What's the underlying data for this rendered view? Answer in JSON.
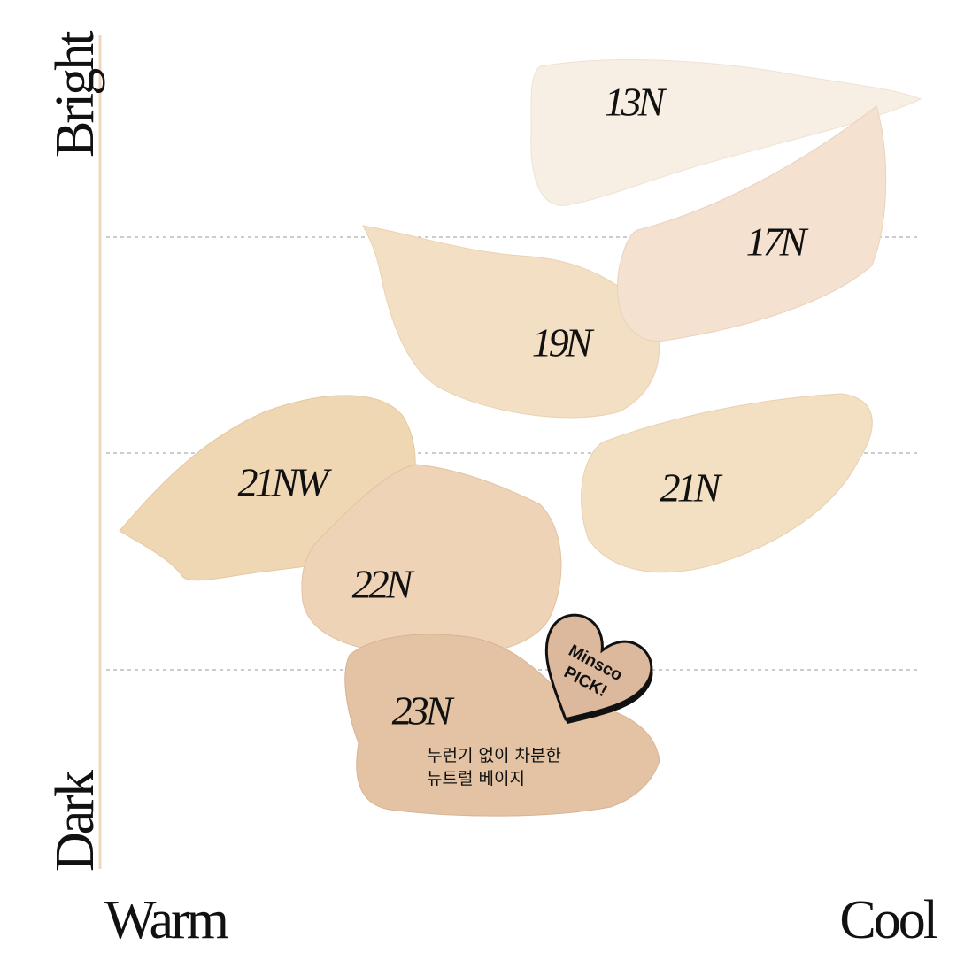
{
  "axes": {
    "y_top": "Bright",
    "y_bottom": "Dark",
    "x_left": "Warm",
    "x_right": "Cool"
  },
  "swatches": [
    {
      "label": "13N"
    },
    {
      "label": "17N"
    },
    {
      "label": "19N"
    },
    {
      "label": "21NW"
    },
    {
      "label": "21N"
    },
    {
      "label": "22N"
    },
    {
      "label": "23N"
    }
  ],
  "badge": {
    "lines": [
      "Minsco",
      "PICK!"
    ]
  },
  "note": {
    "lines": [
      "누런기 없이 차분한",
      "뉴트럴 베이지"
    ]
  }
}
